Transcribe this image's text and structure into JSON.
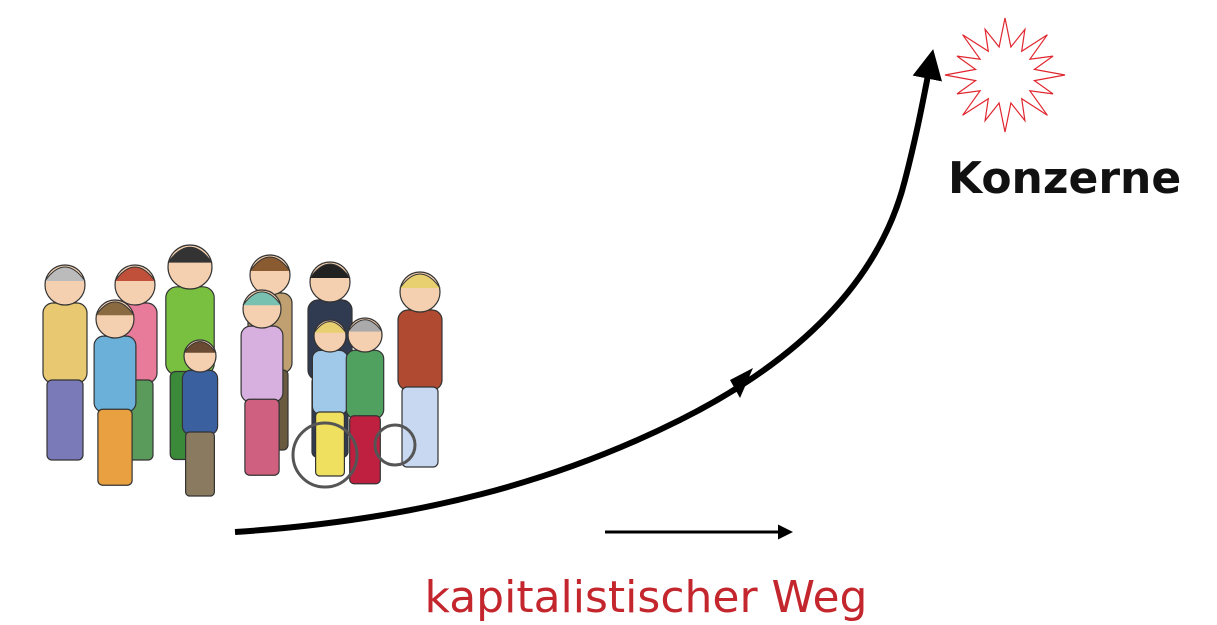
{
  "nodes": [
    {
      "label": "Konzerne"
    }
  ],
  "edges": [
    {
      "label": "kapitalistischer Weg"
    }
  ]
}
